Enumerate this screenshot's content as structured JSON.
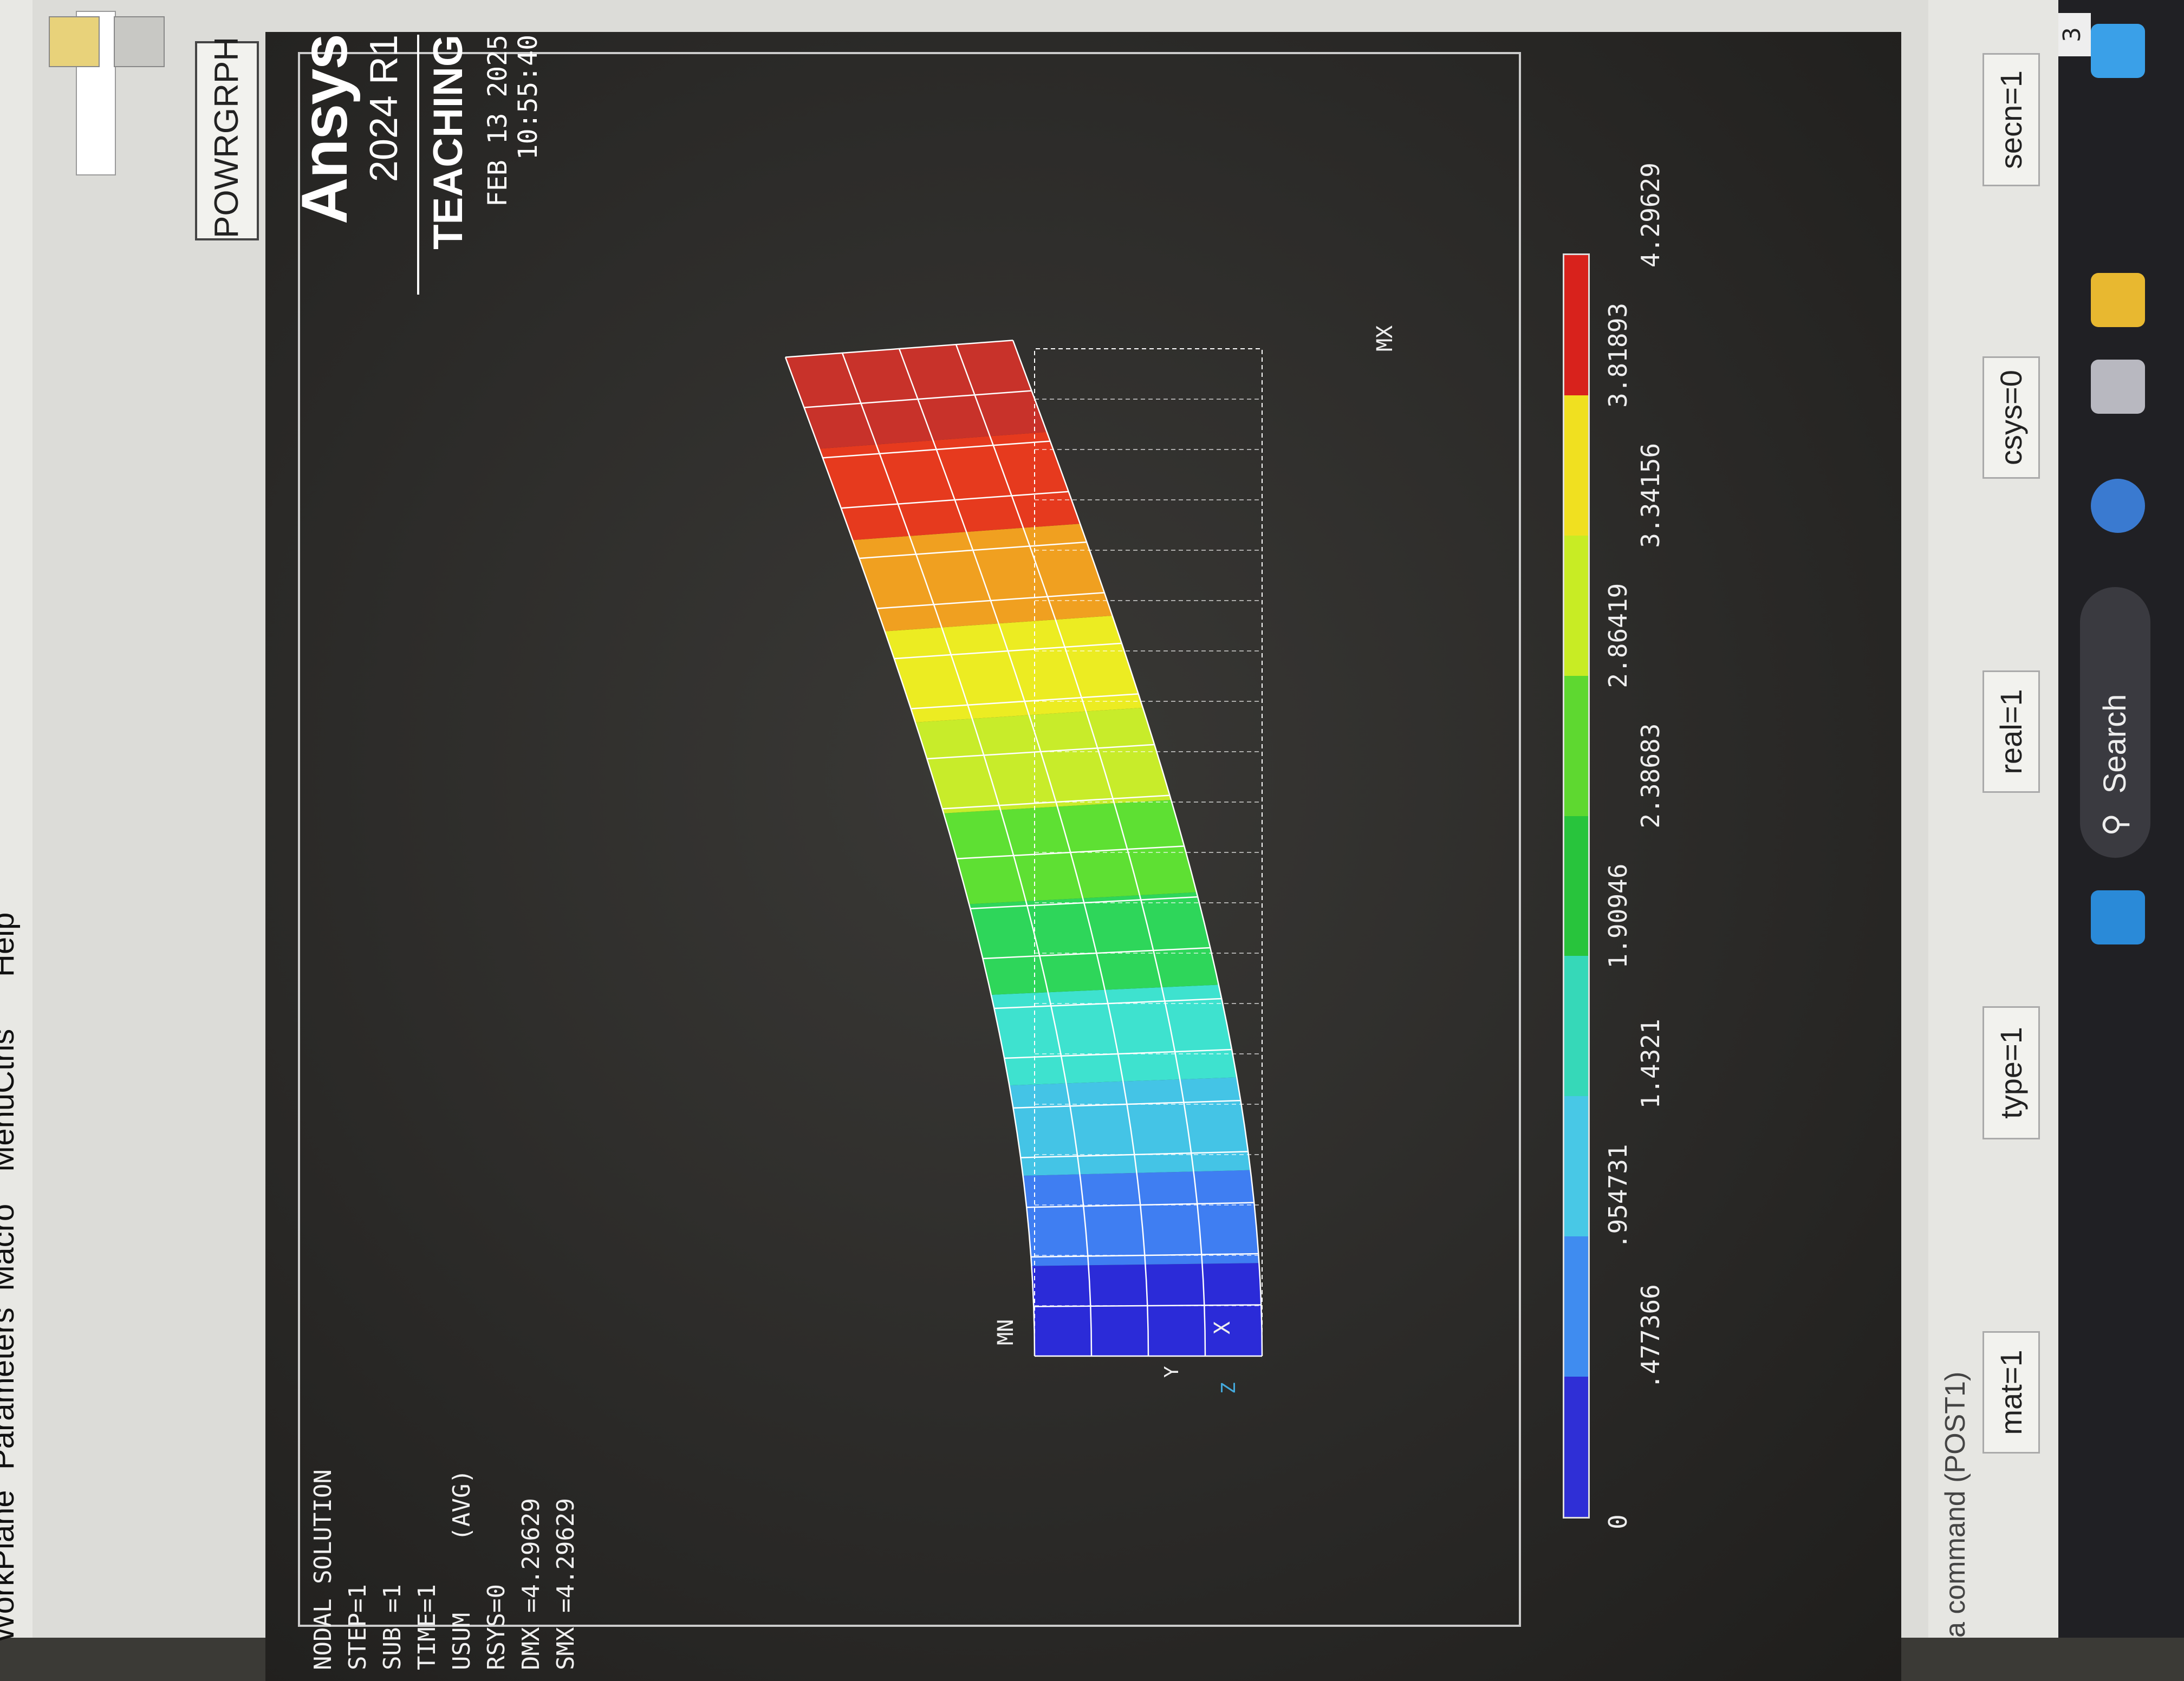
{
  "menubar": {
    "workplane": "WorkPlane",
    "parameters": "Parameters",
    "macro": "Macro",
    "menuctrls": "MenuCtrls",
    "help": "Help"
  },
  "toolbar": {
    "powrgrph": "POWRGRPH"
  },
  "solution": {
    "title": "NODAL SOLUTION",
    "lines": [
      "STEP=1",
      "SUB =1",
      "TIME=1",
      "USUM     (AVG)",
      "RSYS=0",
      "DMX =4.29629",
      "SMX =4.29629"
    ]
  },
  "logo": {
    "brand": "Ansys",
    "version": "2024 R1",
    "edition": "TEACHING",
    "date": "FEB 13 2025",
    "time": "10:55:40"
  },
  "plot": {
    "min_label": "MN",
    "max_label": "MX",
    "axis": {
      "x": "X",
      "y": "Y",
      "z": "Z"
    },
    "contour_colors": [
      "#2b2bd8",
      "#3f7ef2",
      "#44c4e6",
      "#3ee2cf",
      "#2ed65a",
      "#5ee033",
      "#c8ec2a",
      "#ecec22",
      "#f0a020",
      "#e63a1e",
      "#c8322a"
    ],
    "legend_values": [
      "0",
      ".477366",
      ".954731",
      "1.4321",
      "1.90946",
      "2.38683",
      "2.86419",
      "3.34156",
      "3.81893",
      "4.29629"
    ],
    "legend_colors": [
      "#2f2fd6",
      "#3f8cf0",
      "#48c8e6",
      "#36d8b8",
      "#28c43c",
      "#5ed830",
      "#c8ec24",
      "#f0e020",
      "#d8221c"
    ]
  },
  "status": {
    "cmd": "a command (POST1)",
    "fields": [
      "mat=1",
      "type=1",
      "real=1",
      "csys=0",
      "secn=1"
    ]
  },
  "taskbar": {
    "search": "Search",
    "badge": "3"
  }
}
